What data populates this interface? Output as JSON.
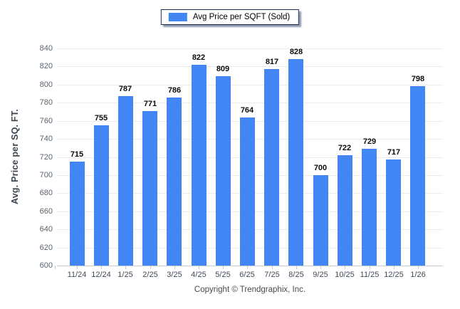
{
  "legend": {
    "label": "Avg Price per SQFT (Sold)"
  },
  "footer": {
    "text": "Copyright © Trendgraphix, Inc."
  },
  "colors": {
    "bar": "#4285f4",
    "grid": "#ececec",
    "baseline": "#c6c9cc",
    "tick_text": "#5a6470",
    "value_text": "#0b0b0b",
    "legend_border": "#1b2f55"
  },
  "chart_data": {
    "type": "bar",
    "categories": [
      "11/24",
      "12/24",
      "1/25",
      "2/25",
      "3/25",
      "4/25",
      "5/25",
      "6/25",
      "7/25",
      "8/25",
      "9/25",
      "10/25",
      "11/25",
      "12/25",
      "1/26"
    ],
    "values": [
      715,
      755,
      787,
      771,
      786,
      822,
      809,
      764,
      817,
      828,
      700,
      722,
      729,
      717,
      798
    ],
    "title": "",
    "xlabel": "",
    "ylabel": "Avg. Price per SQ. FT.",
    "ylim": [
      600,
      840
    ],
    "ytick_step": 20,
    "grid": true,
    "legend_entries": [
      "Avg Price per SQFT (Sold)"
    ],
    "legend_position": "top-center",
    "value_labels": "above-bars"
  }
}
